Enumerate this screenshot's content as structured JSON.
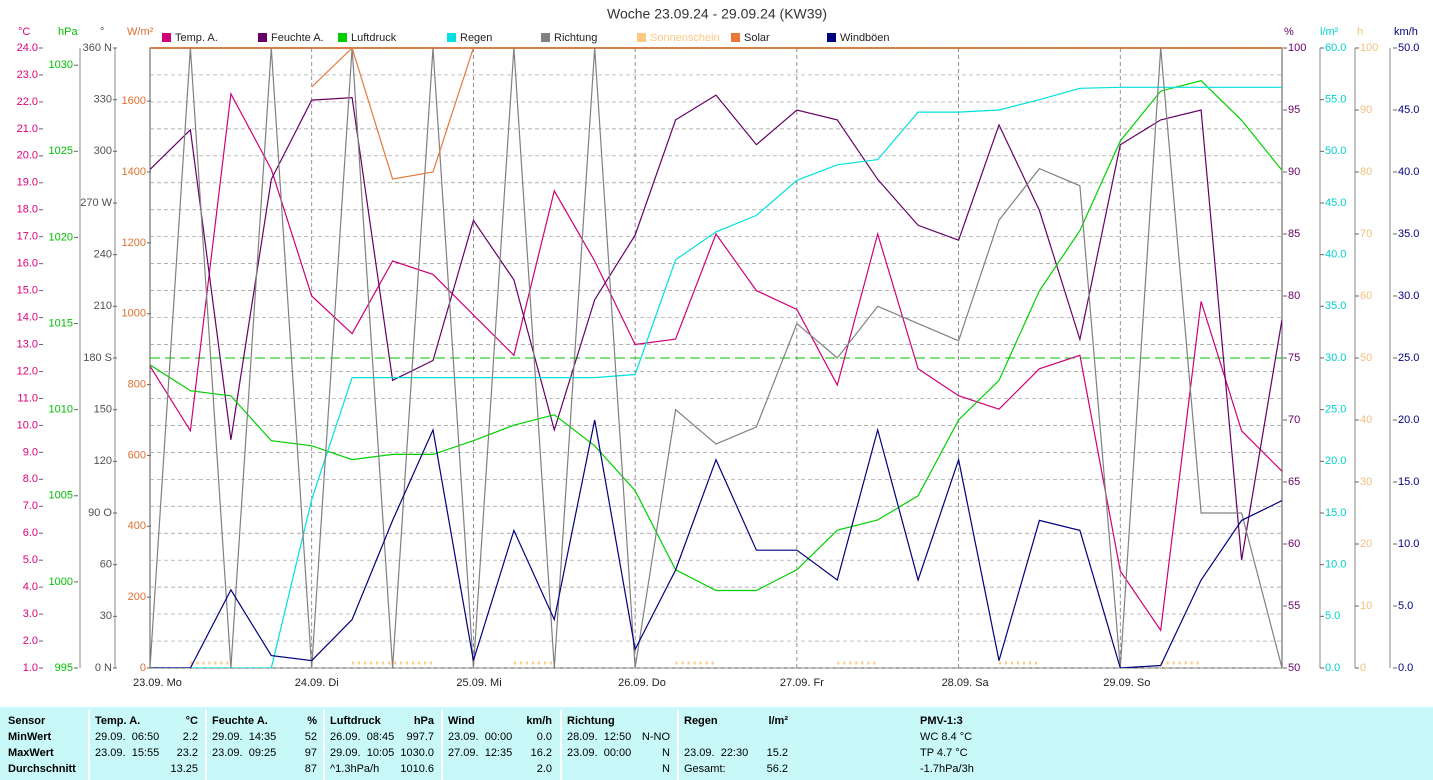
{
  "chart_data": {
    "type": "line",
    "title": "Woche 23.09.24 - 29.09.24 (KW39)",
    "categories": [
      "23.09. Mo",
      null,
      null,
      null,
      "24.09. Di",
      null,
      null,
      null,
      "25.09. Mi",
      null,
      null,
      null,
      "26.09. Do",
      null,
      null,
      null,
      "27.09. Fr",
      null,
      null,
      null,
      "28.09. Sa",
      null,
      null,
      null,
      "29.09. So",
      null,
      null,
      null,
      null
    ],
    "axes": [
      {
        "label": "°C",
        "side": "left",
        "color": "#e0007a",
        "lim": [
          1,
          24
        ],
        "grid": true,
        "ticks": [
          {
            "value": 1,
            "label": "1.0"
          },
          {
            "value": 2,
            "label": "2.0"
          },
          {
            "value": 3,
            "label": "3.0"
          },
          {
            "value": 4,
            "label": "4.0"
          },
          {
            "value": 5,
            "label": "5.0"
          },
          {
            "value": 6,
            "label": "6.0"
          },
          {
            "value": 7,
            "label": "7.0"
          },
          {
            "value": 8,
            "label": "8.0"
          },
          {
            "value": 9,
            "label": "9.0"
          },
          {
            "value": 10,
            "label": "10.0"
          },
          {
            "value": 11,
            "label": "11.0"
          },
          {
            "value": 12,
            "label": "12.0"
          },
          {
            "value": 13,
            "label": "13.0"
          },
          {
            "value": 14,
            "label": "14.0"
          },
          {
            "value": 15,
            "label": "15.0"
          },
          {
            "value": 16,
            "label": "16.0"
          },
          {
            "value": 17,
            "label": "17.0"
          },
          {
            "value": 18,
            "label": "18.0"
          },
          {
            "value": 19,
            "label": "19.0"
          },
          {
            "value": 20,
            "label": "20.0"
          },
          {
            "value": 21,
            "label": "21.0"
          },
          {
            "value": 22,
            "label": "22.0"
          },
          {
            "value": 23,
            "label": "23.0"
          },
          {
            "value": 24,
            "label": "24.0"
          }
        ]
      },
      {
        "label": "hPa",
        "side": "left",
        "color": "#00c000",
        "lim": [
          995,
          1031
        ],
        "ticks": [
          995,
          1000,
          1005,
          1010,
          1015,
          1020,
          1025,
          1030
        ]
      },
      {
        "label": "°",
        "side": "left",
        "color": "#505050",
        "lim": [
          0,
          360
        ],
        "ticks": [
          {
            "value": 0,
            "label": "0 N"
          },
          30,
          60,
          {
            "value": 90,
            "label": "90 O"
          },
          120,
          150,
          {
            "value": 180,
            "label": "180 S"
          },
          210,
          240,
          {
            "value": 270,
            "label": "270 W"
          },
          300,
          330,
          {
            "value": 360,
            "label": "360 N"
          }
        ]
      },
      {
        "label": "W/m²",
        "side": "left",
        "color": "#e07030",
        "lim": [
          0,
          1750
        ],
        "ticks": [
          0,
          200,
          400,
          600,
          800,
          1000,
          1200,
          1400,
          1600
        ]
      },
      {
        "label": "%",
        "side": "right",
        "color": "#660066",
        "lim": [
          50,
          100
        ],
        "ticks": [
          50,
          55,
          60,
          65,
          70,
          75,
          80,
          85,
          90,
          95,
          100
        ]
      },
      {
        "label": "l/m²",
        "side": "right",
        "color": "#00d0d0",
        "lim": [
          0,
          60
        ],
        "ticks": [
          {
            "value": 0,
            "label": "0.0"
          },
          {
            "value": 5,
            "label": "5.0"
          },
          {
            "value": 10,
            "label": "10.0"
          },
          {
            "value": 15,
            "label": "15.0"
          },
          {
            "value": 20,
            "label": "20.0"
          },
          {
            "value": 25,
            "label": "25.0"
          },
          {
            "value": 30,
            "label": "30.0"
          },
          {
            "value": 35,
            "label": "35.0"
          },
          {
            "value": 40,
            "label": "40.0"
          },
          {
            "value": 45,
            "label": "45.0"
          },
          {
            "value": 50,
            "label": "50.0"
          },
          {
            "value": 55,
            "label": "55.0"
          },
          {
            "value": 60,
            "label": "60.0"
          }
        ]
      },
      {
        "label": "h",
        "side": "right",
        "color": "#f0c080",
        "lim": [
          0,
          100
        ],
        "ticks": [
          0,
          10,
          20,
          30,
          40,
          50,
          60,
          70,
          80,
          90,
          100
        ]
      },
      {
        "label": "km/h",
        "side": "right",
        "color": "#000080",
        "lim": [
          0,
          50
        ],
        "ticks": [
          {
            "value": 0,
            "label": "0.0"
          },
          {
            "value": 5,
            "label": "5.0"
          },
          {
            "value": 10,
            "label": "10.0"
          },
          {
            "value": 15,
            "label": "15.0"
          },
          {
            "value": 20,
            "label": "20.0"
          },
          {
            "value": 25,
            "label": "25.0"
          },
          {
            "value": 30,
            "label": "30.0"
          },
          {
            "value": 35,
            "label": "35.0"
          },
          {
            "value": 40,
            "label": "40.0"
          },
          {
            "value": 45,
            "label": "45.0"
          },
          {
            "value": 50,
            "label": "50.0"
          }
        ]
      }
    ],
    "series": [
      {
        "name": "Temp. A.",
        "color": "#d0007a",
        "axis": "°C",
        "values": [
          12.2,
          9.8,
          22.3,
          19.5,
          14.8,
          13.4,
          16.1,
          15.6,
          14.1,
          12.6,
          18.7,
          16.1,
          13.0,
          13.2,
          17.1,
          15.0,
          14.3,
          11.5,
          17.1,
          12.1,
          11.1,
          10.6,
          12.1,
          12.6,
          4.6,
          2.4,
          14.6,
          9.8,
          8.3
        ]
      },
      {
        "name": "Feuchte A.",
        "color": "#660066",
        "axis": "%",
        "values": [
          90.2,
          93.4,
          68.4,
          89.4,
          95.8,
          96,
          73.2,
          74.8,
          86.1,
          81.3,
          69.2,
          79.7,
          84.9,
          94.2,
          96.2,
          92.2,
          95,
          94.2,
          89.4,
          85.7,
          84.5,
          93.8,
          86.9,
          76.5,
          92.2,
          94.2,
          95,
          58.7,
          78.1
        ]
      },
      {
        "name": "Luftdruck",
        "color": "#00d000",
        "axis": "hPa",
        "values": [
          1012.6,
          1011.1,
          1010.8,
          1008.2,
          1007.9,
          1007.1,
          1007.4,
          1007.4,
          1008.2,
          1009.1,
          1009.7,
          1007.9,
          1005.3,
          1000.7,
          999.5,
          999.5,
          1000.7,
          1003,
          1003.6,
          1005,
          1009.4,
          1011.7,
          1016.9,
          1020.4,
          1025.6,
          1028.5,
          1029.1,
          1026.8,
          1023.9
        ]
      },
      {
        "name": "Regen",
        "color": "#00e0e0",
        "axis": "l/m²",
        "values": [
          0,
          0,
          0,
          0,
          16.3,
          28.1,
          28.1,
          28.1,
          28.1,
          28.1,
          28.1,
          28.1,
          28.4,
          39.5,
          42.2,
          43.8,
          47.2,
          48.7,
          49.2,
          53.8,
          53.8,
          54,
          55,
          56.1,
          56.2,
          56.2,
          56.2,
          56.2,
          56.2
        ]
      },
      {
        "name": "Richtung",
        "color": "#808080",
        "axis": "°",
        "values": [
          0,
          360,
          0,
          360,
          0,
          360,
          0,
          360,
          0,
          360,
          0,
          360,
          0,
          150,
          130,
          140,
          200,
          180,
          210,
          200,
          190,
          260,
          290,
          280,
          0,
          360,
          90,
          90,
          0
        ]
      },
      {
        "name": "Sonnenschein",
        "color": "#ffc880",
        "axis": "h",
        "values": [
          null,
          0.8,
          0.8,
          null,
          null,
          0.8,
          0.8,
          0.8,
          null,
          0.8,
          0.8,
          null,
          null,
          0.8,
          0.8,
          null,
          null,
          0.8,
          0.8,
          null,
          null,
          0.8,
          0.8,
          null,
          null,
          0.8,
          0.8,
          null,
          null
        ]
      },
      {
        "name": "Solar",
        "color": "#e87838",
        "axis": "W/m²",
        "values": [
          null,
          null,
          null,
          null,
          1640,
          1750,
          1380,
          1400,
          1750,
          null,
          null,
          null,
          null,
          null,
          null,
          null,
          null,
          null,
          null,
          null,
          null,
          null,
          null,
          null,
          null,
          null,
          null,
          null,
          null
        ]
      },
      {
        "name": "Windböen",
        "color": "#000080",
        "axis": "km/h",
        "values": [
          0,
          0,
          6.3,
          1,
          0.6,
          3.9,
          11.9,
          19.2,
          0.6,
          11.1,
          3.9,
          20,
          1.5,
          7.9,
          16.8,
          9.5,
          9.5,
          7.1,
          19.2,
          7.1,
          16.8,
          0.6,
          11.9,
          11.1,
          0,
          0.2,
          7.1,
          11.9,
          13.5
        ]
      }
    ],
    "reference_line": {
      "axis": "hPa",
      "value": 1013,
      "color": "#00c000"
    }
  },
  "table": {
    "columns": [
      {
        "header": "Sensor",
        "cells": [
          "MinWert",
          "MaxWert",
          "Durchschnitt"
        ]
      },
      {
        "header": "Temp. A.",
        "unit": "°C",
        "cells": [
          {
            "time": "29.09.  06:50",
            "value": "2.2"
          },
          {
            "time": "23.09.  15:55",
            "value": "23.2"
          },
          {
            "value": "13.25"
          }
        ]
      },
      {
        "header": "Feuchte A.",
        "unit": "%",
        "cells": [
          {
            "time": "29.09.  14:35",
            "value": "52"
          },
          {
            "time": "23.09.  09:25",
            "value": "97"
          },
          {
            "value": "87"
          }
        ]
      },
      {
        "header": "Luftdruck",
        "unit": "hPa",
        "cells": [
          {
            "time": "26.09.  08:45",
            "value": "997.7"
          },
          {
            "time": "29.09.  10:05",
            "value": "1030.0"
          },
          {
            "time": "^1.3hPa/h",
            "value": "1010.6"
          }
        ]
      },
      {
        "header": "Wind",
        "unit": "km/h",
        "cells": [
          {
            "time": "23.09.  00:00",
            "value": "0.0"
          },
          {
            "time": "27.09.  12:35",
            "value": "16.2"
          },
          {
            "value": "2.0"
          }
        ]
      },
      {
        "header": "Richtung",
        "cells": [
          {
            "time": "28.09.  12:50",
            "value": "N-NO"
          },
          {
            "time": "23.09.  00:00",
            "value": "N"
          },
          {
            "value": "N"
          }
        ]
      },
      {
        "header": "Regen",
        "unit": "l/m²",
        "cells": [
          null,
          {
            "time": "23.09.  22:30",
            "value": "15.2"
          },
          {
            "time": "Gesamt:",
            "value": "56.2"
          }
        ]
      },
      {
        "header": "PMV-1:3",
        "cells": [
          "WC 8.4 °C",
          "TP 4.7 °C",
          "-1.7hPa/3h"
        ]
      }
    ]
  }
}
